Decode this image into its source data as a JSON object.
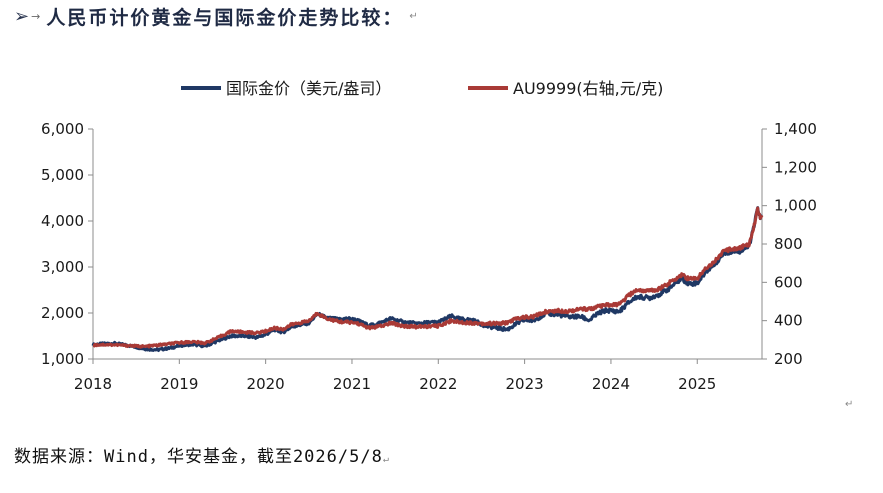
{
  "header": {
    "bullet": "➢",
    "arrow": "→",
    "title": "人民币计价黄金与国际金价走势比较：",
    "para_mark": "↵"
  },
  "chart_data": {
    "type": "line",
    "title": "",
    "x_ticks": [
      "2018",
      "2019",
      "2020",
      "2021",
      "2022",
      "2023",
      "2024",
      "2025"
    ],
    "xlim": [
      2018,
      2025.75
    ],
    "left_axis": {
      "label": "",
      "ylim": [
        1000,
        6000
      ],
      "ticks": [
        "1,000",
        "2,000",
        "3,000",
        "4,000",
        "5,000",
        "6,000"
      ]
    },
    "right_axis": {
      "label": "",
      "ylim": [
        200,
        1400
      ],
      "ticks": [
        "200",
        "400",
        "600",
        "800",
        "1,000",
        "1,200",
        "1,400"
      ]
    },
    "legend_position": "top",
    "series": [
      {
        "name": "国际金价（美元/盎司）",
        "axis": "left",
        "color": "#1f3864",
        "points": [
          [
            2018.0,
            1310
          ],
          [
            2018.1,
            1330
          ],
          [
            2018.25,
            1340
          ],
          [
            2018.4,
            1300
          ],
          [
            2018.6,
            1220
          ],
          [
            2018.75,
            1200
          ],
          [
            2018.9,
            1240
          ],
          [
            2019.0,
            1290
          ],
          [
            2019.15,
            1320
          ],
          [
            2019.3,
            1280
          ],
          [
            2019.45,
            1400
          ],
          [
            2019.6,
            1500
          ],
          [
            2019.75,
            1500
          ],
          [
            2019.9,
            1470
          ],
          [
            2020.0,
            1530
          ],
          [
            2020.1,
            1640
          ],
          [
            2020.2,
            1580
          ],
          [
            2020.3,
            1700
          ],
          [
            2020.5,
            1780
          ],
          [
            2020.6,
            1980
          ],
          [
            2020.7,
            1900
          ],
          [
            2020.85,
            1860
          ],
          [
            2020.95,
            1880
          ],
          [
            2021.05,
            1850
          ],
          [
            2021.2,
            1720
          ],
          [
            2021.35,
            1800
          ],
          [
            2021.45,
            1880
          ],
          [
            2021.6,
            1800
          ],
          [
            2021.75,
            1770
          ],
          [
            2021.9,
            1790
          ],
          [
            2022.0,
            1800
          ],
          [
            2022.15,
            1930
          ],
          [
            2022.25,
            1870
          ],
          [
            2022.4,
            1840
          ],
          [
            2022.55,
            1720
          ],
          [
            2022.7,
            1670
          ],
          [
            2022.8,
            1640
          ],
          [
            2022.9,
            1760
          ],
          [
            2023.0,
            1850
          ],
          [
            2023.1,
            1830
          ],
          [
            2023.25,
            1990
          ],
          [
            2023.4,
            1960
          ],
          [
            2023.5,
            1920
          ],
          [
            2023.65,
            1920
          ],
          [
            2023.75,
            1840
          ],
          [
            2023.85,
            1990
          ],
          [
            2023.95,
            2060
          ],
          [
            2024.1,
            2030
          ],
          [
            2024.2,
            2220
          ],
          [
            2024.3,
            2350
          ],
          [
            2024.45,
            2330
          ],
          [
            2024.55,
            2400
          ],
          [
            2024.65,
            2500
          ],
          [
            2024.75,
            2650
          ],
          [
            2024.82,
            2750
          ],
          [
            2024.9,
            2640
          ],
          [
            2025.0,
            2650
          ],
          [
            2025.1,
            2900
          ],
          [
            2025.2,
            3050
          ],
          [
            2025.3,
            3300
          ],
          [
            2025.4,
            3330
          ],
          [
            2025.5,
            3350
          ],
          [
            2025.6,
            3450
          ],
          [
            2025.66,
            3900
          ],
          [
            2025.7,
            4300
          ],
          [
            2025.73,
            4050
          ],
          [
            2025.75,
            4100
          ]
        ]
      },
      {
        "name": "AU9999(右轴,元/克)",
        "axis": "right",
        "color": "#a93a36",
        "points": [
          [
            2018.0,
            272
          ],
          [
            2018.1,
            275
          ],
          [
            2018.25,
            274
          ],
          [
            2018.4,
            270
          ],
          [
            2018.6,
            265
          ],
          [
            2018.75,
            272
          ],
          [
            2018.9,
            280
          ],
          [
            2019.0,
            285
          ],
          [
            2019.15,
            290
          ],
          [
            2019.3,
            283
          ],
          [
            2019.45,
            312
          ],
          [
            2019.6,
            345
          ],
          [
            2019.75,
            340
          ],
          [
            2019.9,
            336
          ],
          [
            2020.0,
            345
          ],
          [
            2020.1,
            362
          ],
          [
            2020.2,
            355
          ],
          [
            2020.3,
            380
          ],
          [
            2020.5,
            398
          ],
          [
            2020.6,
            440
          ],
          [
            2020.7,
            412
          ],
          [
            2020.85,
            395
          ],
          [
            2020.95,
            392
          ],
          [
            2021.05,
            388
          ],
          [
            2021.2,
            362
          ],
          [
            2021.35,
            372
          ],
          [
            2021.45,
            388
          ],
          [
            2021.6,
            372
          ],
          [
            2021.75,
            368
          ],
          [
            2021.9,
            370
          ],
          [
            2022.0,
            372
          ],
          [
            2022.15,
            400
          ],
          [
            2022.25,
            392
          ],
          [
            2022.4,
            388
          ],
          [
            2022.55,
            385
          ],
          [
            2022.7,
            385
          ],
          [
            2022.8,
            390
          ],
          [
            2022.9,
            410
          ],
          [
            2023.0,
            418
          ],
          [
            2023.1,
            420
          ],
          [
            2023.25,
            448
          ],
          [
            2023.4,
            452
          ],
          [
            2023.5,
            450
          ],
          [
            2023.65,
            460
          ],
          [
            2023.75,
            462
          ],
          [
            2023.85,
            472
          ],
          [
            2023.95,
            480
          ],
          [
            2024.1,
            485
          ],
          [
            2024.2,
            530
          ],
          [
            2024.3,
            560
          ],
          [
            2024.45,
            555
          ],
          [
            2024.55,
            565
          ],
          [
            2024.65,
            590
          ],
          [
            2024.75,
            620
          ],
          [
            2024.82,
            640
          ],
          [
            2024.9,
            618
          ],
          [
            2025.0,
            620
          ],
          [
            2025.1,
            675
          ],
          [
            2025.2,
            710
          ],
          [
            2025.3,
            760
          ],
          [
            2025.4,
            775
          ],
          [
            2025.5,
            780
          ],
          [
            2025.6,
            800
          ],
          [
            2025.66,
            900
          ],
          [
            2025.7,
            980
          ],
          [
            2025.73,
            940
          ],
          [
            2025.75,
            950
          ]
        ]
      }
    ]
  },
  "footer": {
    "source": "数据来源：Wind，华安基金，截至2026/5/8",
    "para_mark": "↵"
  },
  "stray_mark": "↵"
}
